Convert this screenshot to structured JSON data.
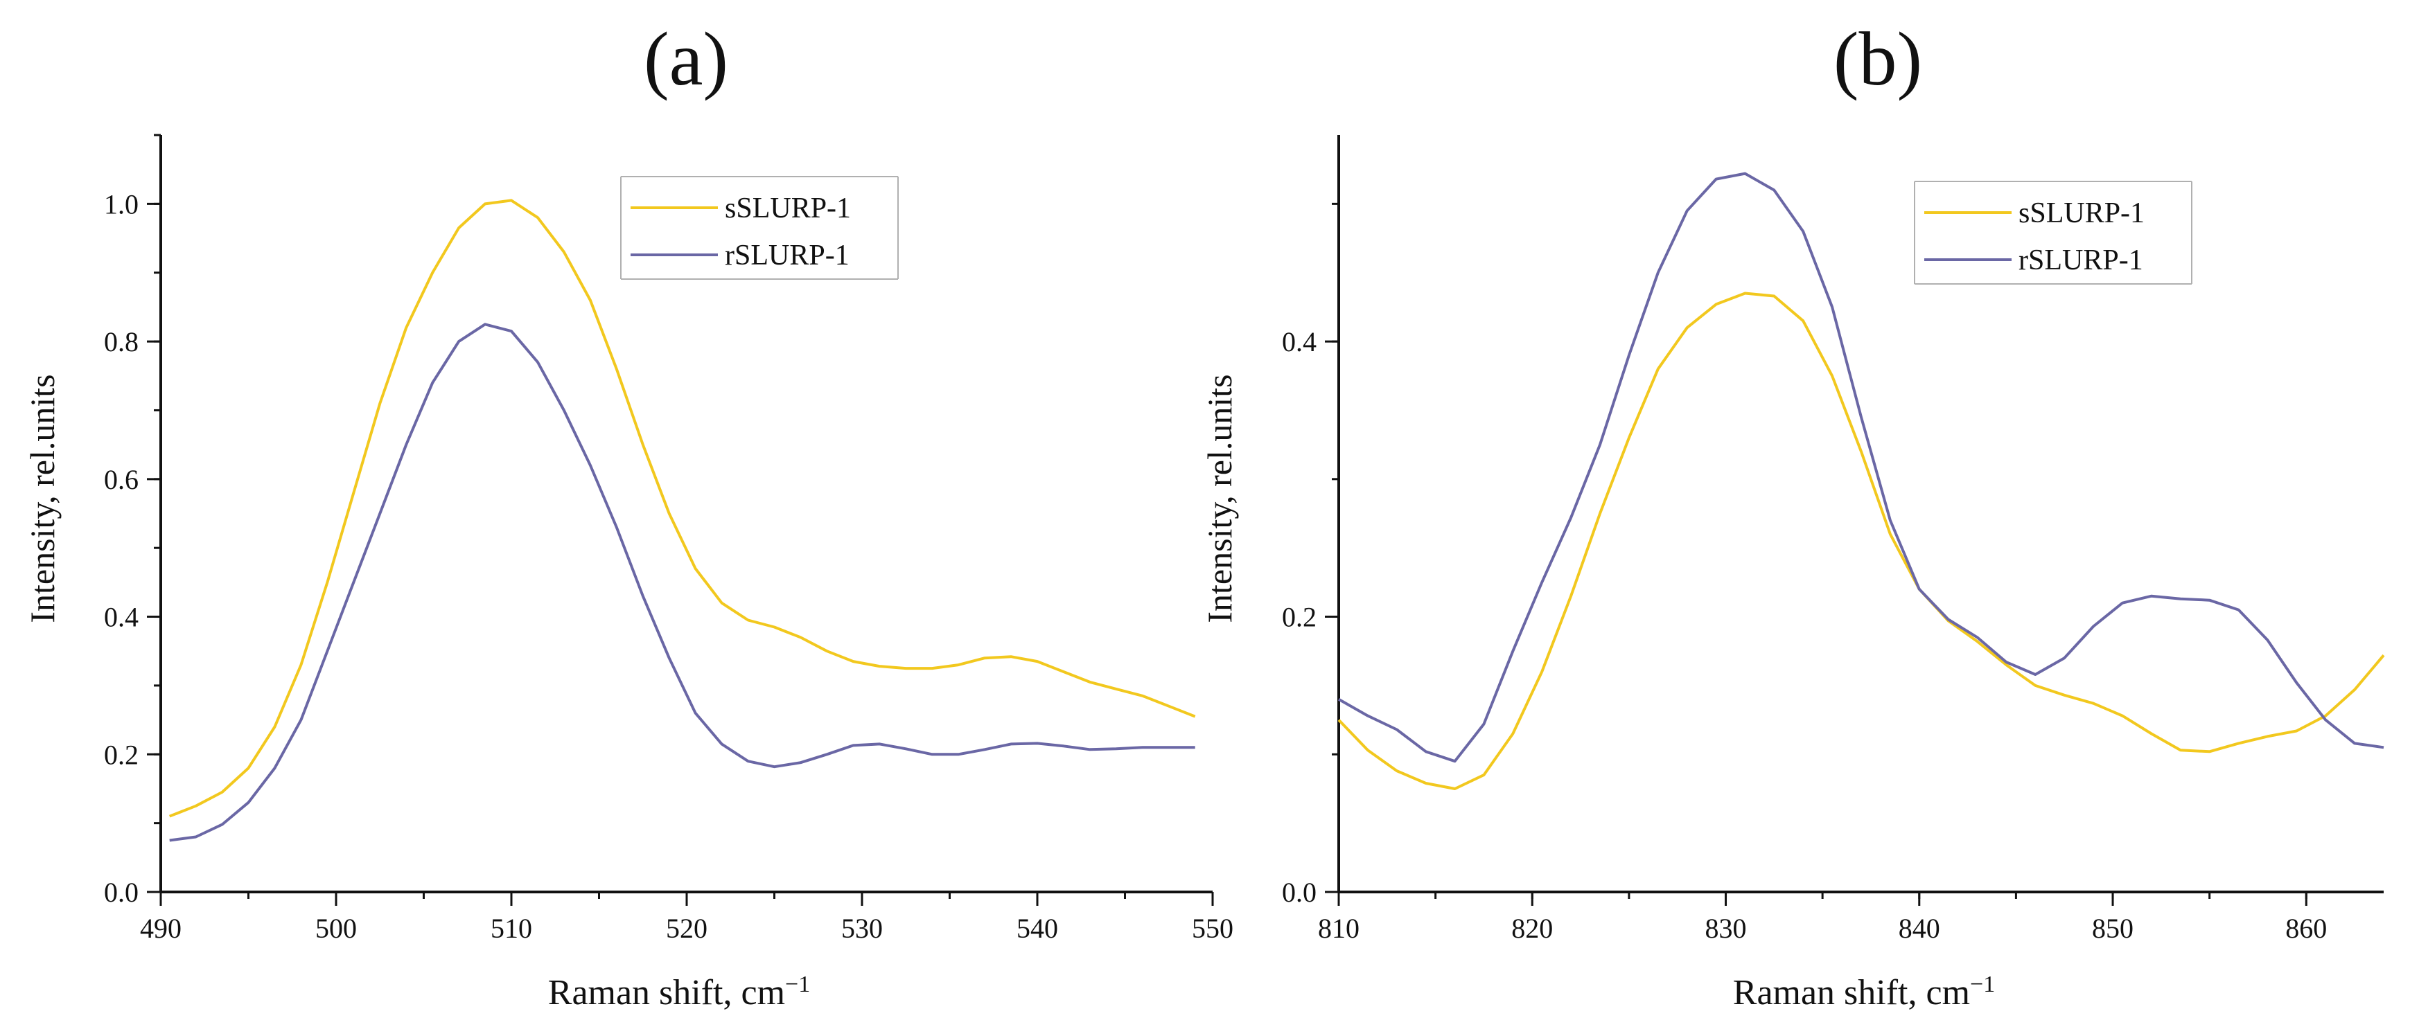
{
  "colors": {
    "series_yellow": "#F2C81E",
    "series_purple": "#6A67A5",
    "axis": "#111111",
    "legend_border": "#b0b0b0"
  },
  "chart_data": [
    {
      "panel_label": "(a)",
      "type": "line",
      "xlabel": "Raman shift, cm",
      "xlabel_superscript": "−1",
      "ylabel": "Intensity, rel.units",
      "xlim": [
        490,
        550
      ],
      "ylim": [
        0,
        1.1
      ],
      "xticks": [
        490,
        500,
        510,
        520,
        530,
        540,
        550
      ],
      "xtick_labels": [
        "490",
        "500",
        "510",
        "520",
        "530",
        "540",
        "550"
      ],
      "yticks": [
        0,
        0.2,
        0.4,
        0.6,
        0.8,
        1.0
      ],
      "ytick_labels": [
        "0.0",
        "0.2",
        "0.4",
        "0.6",
        "0.8",
        "1.0"
      ],
      "y_minor_step": 0.1,
      "x_minor_step": 5,
      "legend_position": "top-right",
      "series": [
        {
          "name": "sSLURP-1",
          "color": "#F2C81E",
          "x": [
            490.5,
            492,
            493.5,
            495,
            496.5,
            498,
            499.5,
            501,
            502.5,
            504,
            505.5,
            507,
            508.5,
            510,
            511.5,
            513,
            514.5,
            516,
            517.5,
            519,
            520.5,
            522,
            523.5,
            525,
            526.5,
            528,
            529.5,
            531,
            532.5,
            534,
            535.5,
            537,
            538.5,
            540,
            541.5,
            543,
            544.5,
            546,
            547.5,
            549
          ],
          "y": [
            0.11,
            0.125,
            0.145,
            0.18,
            0.24,
            0.33,
            0.45,
            0.58,
            0.71,
            0.82,
            0.9,
            0.965,
            1.0,
            1.005,
            0.98,
            0.93,
            0.86,
            0.76,
            0.65,
            0.55,
            0.47,
            0.42,
            0.395,
            0.385,
            0.37,
            0.35,
            0.335,
            0.328,
            0.325,
            0.325,
            0.33,
            0.34,
            0.342,
            0.335,
            0.32,
            0.305,
            0.295,
            0.285,
            0.27,
            0.255
          ]
        },
        {
          "name": "rSLURP-1",
          "color": "#6A67A5",
          "x": [
            490.5,
            492,
            493.5,
            495,
            496.5,
            498,
            499.5,
            501,
            502.5,
            504,
            505.5,
            507,
            508.5,
            510,
            511.5,
            513,
            514.5,
            516,
            517.5,
            519,
            520.5,
            522,
            523.5,
            525,
            526.5,
            528,
            529.5,
            531,
            532.5,
            534,
            535.5,
            537,
            538.5,
            540,
            541.5,
            543,
            544.5,
            546,
            547.5,
            549
          ],
          "y": [
            0.075,
            0.08,
            0.098,
            0.13,
            0.18,
            0.25,
            0.35,
            0.45,
            0.55,
            0.65,
            0.74,
            0.8,
            0.825,
            0.815,
            0.77,
            0.7,
            0.62,
            0.53,
            0.43,
            0.34,
            0.26,
            0.215,
            0.19,
            0.182,
            0.188,
            0.2,
            0.213,
            0.215,
            0.208,
            0.2,
            0.2,
            0.207,
            0.215,
            0.216,
            0.212,
            0.207,
            0.208,
            0.21,
            0.21,
            0.21
          ]
        }
      ]
    },
    {
      "panel_label": "(b)",
      "type": "line",
      "xlabel": "Raman shift, cm",
      "xlabel_superscript": "−1",
      "ylabel": "Intensity, rel.units",
      "xlim": [
        810,
        864
      ],
      "ylim": [
        0,
        0.55
      ],
      "xticks": [
        810,
        820,
        830,
        840,
        850,
        860
      ],
      "xtick_labels": [
        "810",
        "820",
        "830",
        "840",
        "850",
        "860"
      ],
      "yticks": [
        0,
        0.2,
        0.4
      ],
      "ytick_labels": [
        "0.0",
        "0.2",
        "0.4"
      ],
      "y_minor_step": 0.1,
      "x_minor_step": 5,
      "legend_position": "top-right",
      "series": [
        {
          "name": "sSLURP-1",
          "color": "#F2C81E",
          "x": [
            810,
            811.5,
            813,
            814.5,
            816,
            817.5,
            819,
            820.5,
            822,
            823.5,
            825,
            826.5,
            828,
            829.5,
            831,
            832.5,
            834,
            835.5,
            837,
            838.5,
            840,
            841.5,
            843,
            844.5,
            846,
            847.5,
            849,
            850.5,
            852,
            853.5,
            855,
            856.5,
            858,
            859.5,
            861,
            862.5,
            864
          ],
          "y": [
            0.125,
            0.103,
            0.088,
            0.079,
            0.075,
            0.085,
            0.115,
            0.16,
            0.215,
            0.275,
            0.33,
            0.38,
            0.41,
            0.427,
            0.435,
            0.433,
            0.415,
            0.375,
            0.32,
            0.26,
            0.22,
            0.197,
            0.182,
            0.165,
            0.15,
            0.143,
            0.137,
            0.128,
            0.115,
            0.103,
            0.102,
            0.108,
            0.113,
            0.117,
            0.128,
            0.147,
            0.172
          ]
        },
        {
          "name": "rSLURP-1",
          "color": "#6A67A5",
          "x": [
            810,
            811.5,
            813,
            814.5,
            816,
            817.5,
            819,
            820.5,
            822,
            823.5,
            825,
            826.5,
            828,
            829.5,
            831,
            832.5,
            834,
            835.5,
            837,
            838.5,
            840,
            841.5,
            843,
            844.5,
            846,
            847.5,
            849,
            850.5,
            852,
            853.5,
            855,
            856.5,
            858,
            859.5,
            861,
            862.5,
            864
          ],
          "y": [
            0.14,
            0.128,
            0.118,
            0.102,
            0.095,
            0.122,
            0.175,
            0.225,
            0.272,
            0.325,
            0.39,
            0.45,
            0.495,
            0.518,
            0.522,
            0.51,
            0.48,
            0.425,
            0.345,
            0.27,
            0.22,
            0.198,
            0.185,
            0.167,
            0.158,
            0.17,
            0.193,
            0.21,
            0.215,
            0.213,
            0.212,
            0.205,
            0.183,
            0.152,
            0.125,
            0.108,
            0.105
          ]
        }
      ]
    }
  ]
}
